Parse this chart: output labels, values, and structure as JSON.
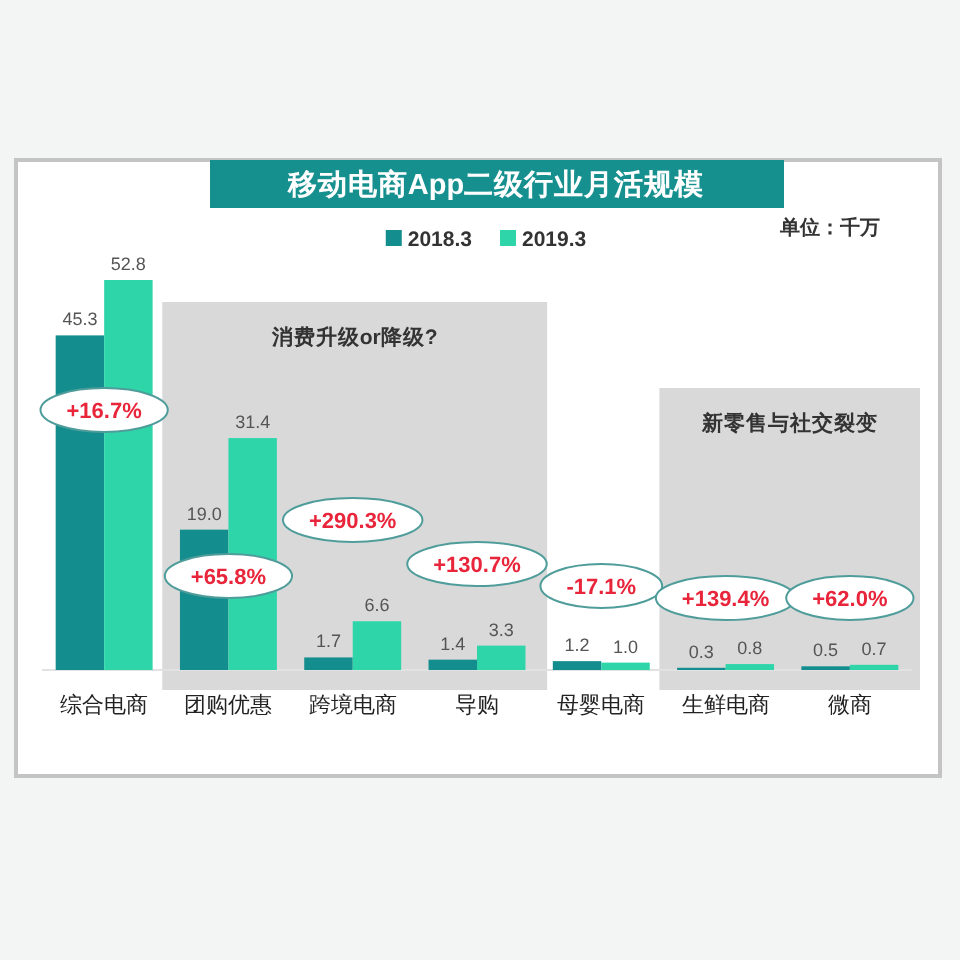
{
  "chart_data": {
    "type": "bar",
    "title": "移动电商App二级行业月活规模",
    "categories": [
      "综合电商",
      "团购优惠",
      "跨境电商",
      "导购",
      "母婴电商",
      "生鲜电商",
      "微商"
    ],
    "series": [
      {
        "name": "2018.3",
        "color": "#138d8d",
        "values": [
          45.3,
          19.0,
          1.7,
          1.4,
          1.2,
          0.3,
          0.5
        ],
        "value_labels": [
          "45.3",
          "19.0",
          "1.7",
          "1.4",
          "1.2",
          "0.3",
          "0.5"
        ]
      },
      {
        "name": "2019.3",
        "color": "#2ed5a9",
        "values": [
          52.8,
          31.4,
          6.6,
          3.3,
          1.0,
          0.8,
          0.7
        ],
        "value_labels": [
          "52.8",
          "31.4",
          "6.6",
          "3.3",
          "1.0",
          "0.8",
          "0.7"
        ]
      }
    ],
    "legend": "top",
    "bands": [
      {
        "axis": "x",
        "from": "团购优惠",
        "to": "导购",
        "label": "消费升级or降级?",
        "color": "#d9d9d9"
      },
      {
        "axis": "x",
        "from": "生鲜电商",
        "to": "微商",
        "label": "新零售与社交裂变",
        "color": "#d9d9d9"
      }
    ],
    "annotations": [
      "单位：千万",
      "+16.7%",
      "+65.8%",
      "+290.3%",
      "+130.7%",
      "-17.1%",
      "+139.4%",
      "+62.0%"
    ]
  }
}
